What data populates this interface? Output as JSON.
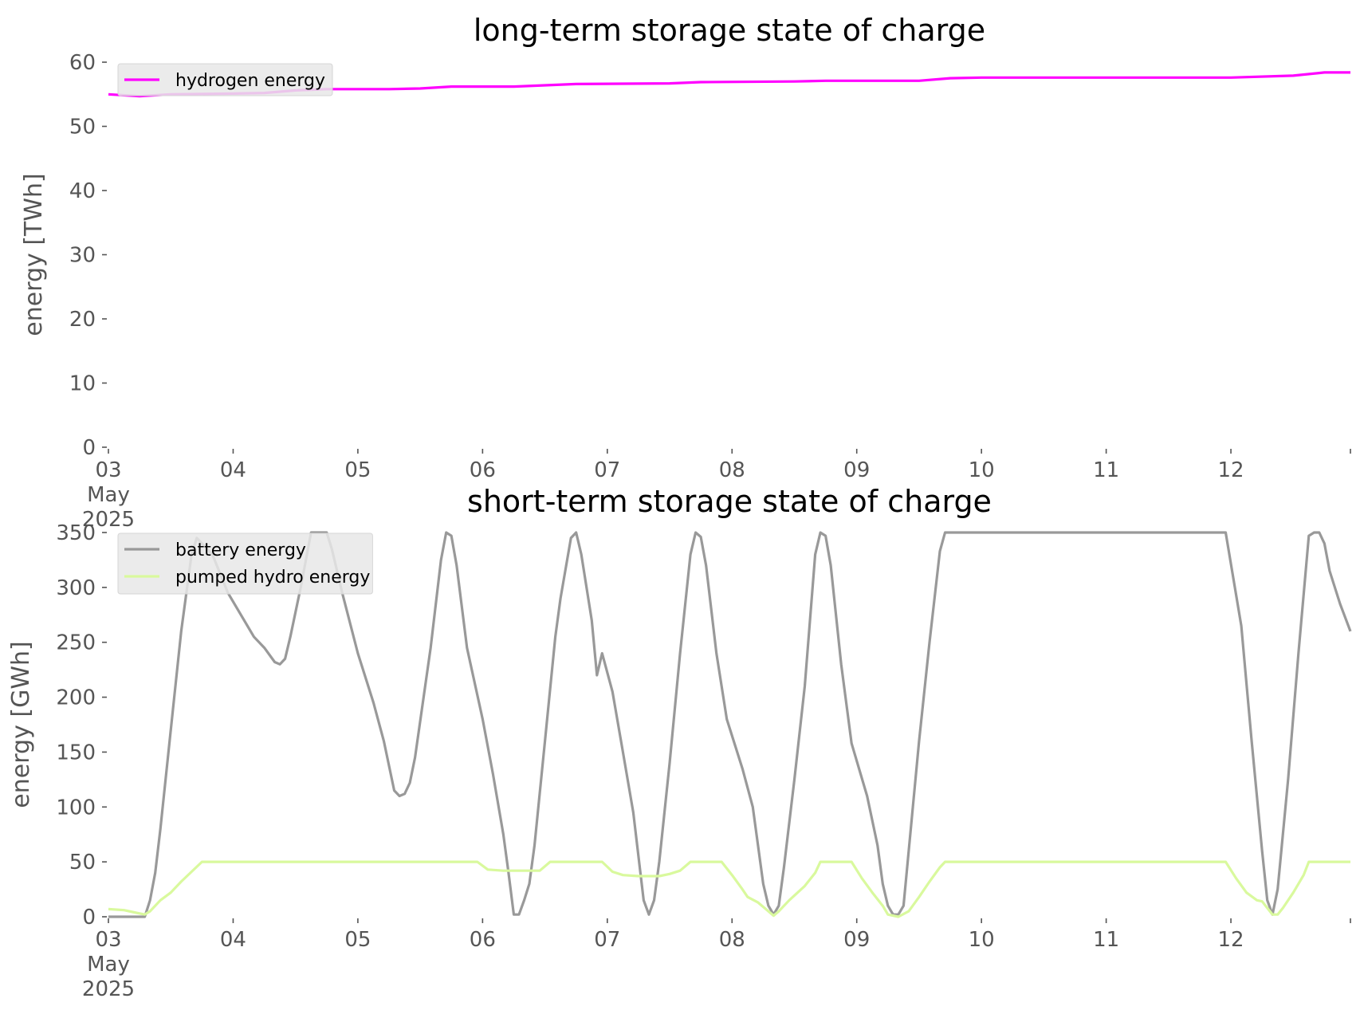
{
  "chart_data": [
    {
      "type": "line",
      "title": "long-term storage state of charge",
      "ylabel": "energy [TWh]",
      "ylim": [
        0,
        60
      ],
      "yticks": [
        "0",
        "10",
        "20",
        "30",
        "40",
        "50",
        "60"
      ],
      "xlim": [
        "2025-05-03T00:00",
        "2025-05-12T23:00"
      ],
      "xticks": [
        {
          "at": "2025-05-03",
          "lines": [
            "03",
            "May",
            "2025"
          ]
        },
        {
          "at": "2025-05-04",
          "lines": [
            "04"
          ]
        },
        {
          "at": "2025-05-05",
          "lines": [
            "05"
          ]
        },
        {
          "at": "2025-05-06",
          "lines": [
            "06"
          ]
        },
        {
          "at": "2025-05-07",
          "lines": [
            "07"
          ]
        },
        {
          "at": "2025-05-08",
          "lines": [
            "08"
          ]
        },
        {
          "at": "2025-05-09",
          "lines": [
            "09"
          ]
        },
        {
          "at": "2025-05-10",
          "lines": [
            "10"
          ]
        },
        {
          "at": "2025-05-11",
          "lines": [
            "11"
          ]
        },
        {
          "at": "2025-05-12",
          "lines": [
            "12"
          ]
        }
      ],
      "grid": false,
      "legend_position": "top-left",
      "series": [
        {
          "name": "hydrogen energy",
          "color": "#ff00ff",
          "points": [
            [
              "2025-05-03T00:00",
              55.0
            ],
            [
              "2025-05-03T06:00",
              54.7
            ],
            [
              "2025-05-03T12:00",
              55.0
            ],
            [
              "2025-05-04T00:00",
              55.1
            ],
            [
              "2025-05-04T06:00",
              55.2
            ],
            [
              "2025-05-04T12:00",
              55.6
            ],
            [
              "2025-05-04T18:00",
              55.8
            ],
            [
              "2025-05-05T06:00",
              55.8
            ],
            [
              "2025-05-05T12:00",
              55.9
            ],
            [
              "2025-05-05T18:00",
              56.2
            ],
            [
              "2025-05-06T06:00",
              56.2
            ],
            [
              "2025-05-06T12:00",
              56.4
            ],
            [
              "2025-05-06T18:00",
              56.6
            ],
            [
              "2025-05-07T12:00",
              56.7
            ],
            [
              "2025-05-07T18:00",
              56.9
            ],
            [
              "2025-05-08T12:00",
              57.0
            ],
            [
              "2025-05-08T18:00",
              57.1
            ],
            [
              "2025-05-09T06:00",
              57.1
            ],
            [
              "2025-05-09T12:00",
              57.1
            ],
            [
              "2025-05-09T18:00",
              57.5
            ],
            [
              "2025-05-10T00:00",
              57.6
            ],
            [
              "2025-05-10T12:00",
              57.6
            ],
            [
              "2025-05-11T12:00",
              57.6
            ],
            [
              "2025-05-12T00:00",
              57.6
            ],
            [
              "2025-05-12T12:00",
              57.9
            ],
            [
              "2025-05-12T18:00",
              58.4
            ],
            [
              "2025-05-12T23:00",
              58.4
            ]
          ]
        }
      ]
    },
    {
      "type": "line",
      "title": "short-term storage state of charge",
      "ylabel": "energy [GWh]",
      "ylim": [
        0,
        350
      ],
      "yticks": [
        "0",
        "50",
        "100",
        "150",
        "200",
        "250",
        "300",
        "350"
      ],
      "xlim": [
        "2025-05-03T00:00",
        "2025-05-12T23:00"
      ],
      "xticks": [
        {
          "at": "2025-05-03",
          "lines": [
            "03",
            "May",
            "2025"
          ]
        },
        {
          "at": "2025-05-04",
          "lines": [
            "04"
          ]
        },
        {
          "at": "2025-05-05",
          "lines": [
            "05"
          ]
        },
        {
          "at": "2025-05-06",
          "lines": [
            "06"
          ]
        },
        {
          "at": "2025-05-07",
          "lines": [
            "07"
          ]
        },
        {
          "at": "2025-05-08",
          "lines": [
            "08"
          ]
        },
        {
          "at": "2025-05-09",
          "lines": [
            "09"
          ]
        },
        {
          "at": "2025-05-10",
          "lines": [
            "10"
          ]
        },
        {
          "at": "2025-05-11",
          "lines": [
            "11"
          ]
        },
        {
          "at": "2025-05-12",
          "lines": [
            "12"
          ]
        }
      ],
      "grid": false,
      "legend_position": "top-left",
      "series": [
        {
          "name": "battery energy",
          "color": "#999999",
          "points": [
            [
              "2025-05-03T00:00",
              0
            ],
            [
              "2025-05-03T07:00",
              0
            ],
            [
              "2025-05-03T08:00",
              15
            ],
            [
              "2025-05-03T09:00",
              40
            ],
            [
              "2025-05-03T10:00",
              80
            ],
            [
              "2025-05-03T12:00",
              170
            ],
            [
              "2025-05-03T14:00",
              260
            ],
            [
              "2025-05-03T16:00",
              330
            ],
            [
              "2025-05-03T17:00",
              345
            ],
            [
              "2025-05-03T20:00",
              330
            ],
            [
              "2025-05-03T23:00",
              295
            ],
            [
              "2025-05-04T04:00",
              255
            ],
            [
              "2025-05-04T06:00",
              245
            ],
            [
              "2025-05-04T08:00",
              232
            ],
            [
              "2025-05-04T09:00",
              230
            ],
            [
              "2025-05-04T10:00",
              235
            ],
            [
              "2025-05-04T11:00",
              255
            ],
            [
              "2025-05-04T13:00",
              300
            ],
            [
              "2025-05-04T15:00",
              350
            ],
            [
              "2025-05-04T18:00",
              350
            ],
            [
              "2025-05-04T19:00",
              335
            ],
            [
              "2025-05-04T21:00",
              295
            ],
            [
              "2025-05-05T00:00",
              240
            ],
            [
              "2025-05-05T03:00",
              195
            ],
            [
              "2025-05-05T05:00",
              160
            ],
            [
              "2025-05-05T07:00",
              115
            ],
            [
              "2025-05-05T08:00",
              110
            ],
            [
              "2025-05-05T09:00",
              112
            ],
            [
              "2025-05-05T10:00",
              122
            ],
            [
              "2025-05-05T11:00",
              145
            ],
            [
              "2025-05-05T14:00",
              245
            ],
            [
              "2025-05-05T16:00",
              325
            ],
            [
              "2025-05-05T17:00",
              350
            ],
            [
              "2025-05-05T18:00",
              347
            ],
            [
              "2025-05-05T19:00",
              320
            ],
            [
              "2025-05-05T21:00",
              245
            ],
            [
              "2025-05-06T00:00",
              180
            ],
            [
              "2025-05-06T02:00",
              130
            ],
            [
              "2025-05-06T04:00",
              75
            ],
            [
              "2025-05-06T05:00",
              40
            ],
            [
              "2025-05-06T06:00",
              2
            ],
            [
              "2025-05-06T07:00",
              2
            ],
            [
              "2025-05-06T08:00",
              15
            ],
            [
              "2025-05-06T09:00",
              30
            ],
            [
              "2025-05-06T10:00",
              65
            ],
            [
              "2025-05-06T12:00",
              160
            ],
            [
              "2025-05-06T14:00",
              255
            ],
            [
              "2025-05-06T15:00",
              290
            ],
            [
              "2025-05-06T17:00",
              345
            ],
            [
              "2025-05-06T18:00",
              350
            ],
            [
              "2025-05-06T19:00",
              330
            ],
            [
              "2025-05-06T21:00",
              270
            ],
            [
              "2025-05-06T22:00",
              220
            ],
            [
              "2025-05-06T23:00",
              240
            ],
            [
              "2025-05-07T01:00",
              205
            ],
            [
              "2025-05-07T03:00",
              150
            ],
            [
              "2025-05-07T05:00",
              95
            ],
            [
              "2025-05-07T07:00",
              15
            ],
            [
              "2025-05-07T08:00",
              2
            ],
            [
              "2025-05-07T09:00",
              15
            ],
            [
              "2025-05-07T10:00",
              50
            ],
            [
              "2025-05-07T12:00",
              140
            ],
            [
              "2025-05-07T14:00",
              240
            ],
            [
              "2025-05-07T16:00",
              330
            ],
            [
              "2025-05-07T17:00",
              350
            ],
            [
              "2025-05-07T18:00",
              346
            ],
            [
              "2025-05-07T19:00",
              320
            ],
            [
              "2025-05-07T21:00",
              240
            ],
            [
              "2025-05-07T23:00",
              180
            ],
            [
              "2025-05-08T02:00",
              135
            ],
            [
              "2025-05-08T04:00",
              100
            ],
            [
              "2025-05-08T06:00",
              30
            ],
            [
              "2025-05-08T07:00",
              10
            ],
            [
              "2025-05-08T08:00",
              2
            ],
            [
              "2025-05-08T09:00",
              10
            ],
            [
              "2025-05-08T10:00",
              45
            ],
            [
              "2025-05-08T12:00",
              125
            ],
            [
              "2025-05-08T14:00",
              210
            ],
            [
              "2025-05-08T16:00",
              330
            ],
            [
              "2025-05-08T17:00",
              350
            ],
            [
              "2025-05-08T18:00",
              347
            ],
            [
              "2025-05-08T19:00",
              320
            ],
            [
              "2025-05-08T21:00",
              230
            ],
            [
              "2025-05-08T23:00",
              158
            ],
            [
              "2025-05-09T02:00",
              110
            ],
            [
              "2025-05-09T04:00",
              65
            ],
            [
              "2025-05-09T05:00",
              30
            ],
            [
              "2025-05-09T06:00",
              10
            ],
            [
              "2025-05-09T07:00",
              2
            ],
            [
              "2025-05-09T08:00",
              2
            ],
            [
              "2025-05-09T09:00",
              10
            ],
            [
              "2025-05-09T10:00",
              60
            ],
            [
              "2025-05-09T12:00",
              160
            ],
            [
              "2025-05-09T14:00",
              250
            ],
            [
              "2025-05-09T16:00",
              333
            ],
            [
              "2025-05-09T17:00",
              350
            ],
            [
              "2025-05-11T23:00",
              350
            ],
            [
              "2025-05-12T02:00",
              265
            ],
            [
              "2025-05-12T04:00",
              160
            ],
            [
              "2025-05-12T06:00",
              60
            ],
            [
              "2025-05-12T07:00",
              15
            ],
            [
              "2025-05-12T08:00",
              2
            ],
            [
              "2025-05-12T09:00",
              25
            ],
            [
              "2025-05-12T11:00",
              125
            ],
            [
              "2025-05-12T13:00",
              240
            ],
            [
              "2025-05-12T15:00",
              347
            ],
            [
              "2025-05-12T16:00",
              350
            ],
            [
              "2025-05-12T17:00",
              350
            ],
            [
              "2025-05-12T18:00",
              340
            ],
            [
              "2025-05-12T19:00",
              315
            ],
            [
              "2025-05-12T21:00",
              285
            ],
            [
              "2025-05-12T23:00",
              260
            ]
          ]
        },
        {
          "name": "pumped hydro energy",
          "color": "#d9f99d",
          "points": [
            [
              "2025-05-03T00:00",
              7
            ],
            [
              "2025-05-03T03:00",
              6
            ],
            [
              "2025-05-03T05:00",
              4
            ],
            [
              "2025-05-03T07:00",
              2
            ],
            [
              "2025-05-03T08:00",
              5
            ],
            [
              "2025-05-03T10:00",
              15
            ],
            [
              "2025-05-03T12:00",
              22
            ],
            [
              "2025-05-03T14:00",
              32
            ],
            [
              "2025-05-03T16:00",
              41
            ],
            [
              "2025-05-03T18:00",
              50
            ],
            [
              "2025-05-05T23:00",
              50
            ],
            [
              "2025-05-06T01:00",
              43
            ],
            [
              "2025-05-06T04:00",
              42
            ],
            [
              "2025-05-06T10:00",
              42
            ],
            [
              "2025-05-06T11:00",
              42
            ],
            [
              "2025-05-06T13:00",
              50
            ],
            [
              "2025-05-06T23:00",
              50
            ],
            [
              "2025-05-07T01:00",
              41
            ],
            [
              "2025-05-07T03:00",
              38
            ],
            [
              "2025-05-07T06:00",
              37
            ],
            [
              "2025-05-07T10:00",
              37
            ],
            [
              "2025-05-07T12:00",
              39
            ],
            [
              "2025-05-07T14:00",
              42
            ],
            [
              "2025-05-07T16:00",
              50
            ],
            [
              "2025-05-07T22:00",
              50
            ],
            [
              "2025-05-08T00:00",
              38
            ],
            [
              "2025-05-08T02:00",
              25
            ],
            [
              "2025-05-08T03:00",
              18
            ],
            [
              "2025-05-08T05:00",
              13
            ],
            [
              "2025-05-08T07:00",
              5
            ],
            [
              "2025-05-08T08:00",
              1
            ],
            [
              "2025-05-08T09:00",
              5
            ],
            [
              "2025-05-08T11:00",
              15
            ],
            [
              "2025-05-08T14:00",
              28
            ],
            [
              "2025-05-08T16:00",
              40
            ],
            [
              "2025-05-08T17:00",
              50
            ],
            [
              "2025-05-08T23:00",
              50
            ],
            [
              "2025-05-09T01:00",
              35
            ],
            [
              "2025-05-09T03:00",
              22
            ],
            [
              "2025-05-09T05:00",
              10
            ],
            [
              "2025-05-09T06:00",
              2
            ],
            [
              "2025-05-09T08:00",
              0
            ],
            [
              "2025-05-09T10:00",
              5
            ],
            [
              "2025-05-09T12:00",
              18
            ],
            [
              "2025-05-09T14:00",
              32
            ],
            [
              "2025-05-09T16:00",
              45
            ],
            [
              "2025-05-09T17:00",
              50
            ],
            [
              "2025-05-11T23:00",
              50
            ],
            [
              "2025-05-12T01:00",
              35
            ],
            [
              "2025-05-12T03:00",
              22
            ],
            [
              "2025-05-12T05:00",
              15
            ],
            [
              "2025-05-12T06:00",
              14
            ],
            [
              "2025-05-12T07:00",
              8
            ],
            [
              "2025-05-12T08:00",
              2
            ],
            [
              "2025-05-12T09:00",
              2
            ],
            [
              "2025-05-12T10:00",
              8
            ],
            [
              "2025-05-12T12:00",
              22
            ],
            [
              "2025-05-12T14:00",
              38
            ],
            [
              "2025-05-12T15:00",
              50
            ],
            [
              "2025-05-12T23:00",
              50
            ]
          ]
        }
      ]
    }
  ]
}
